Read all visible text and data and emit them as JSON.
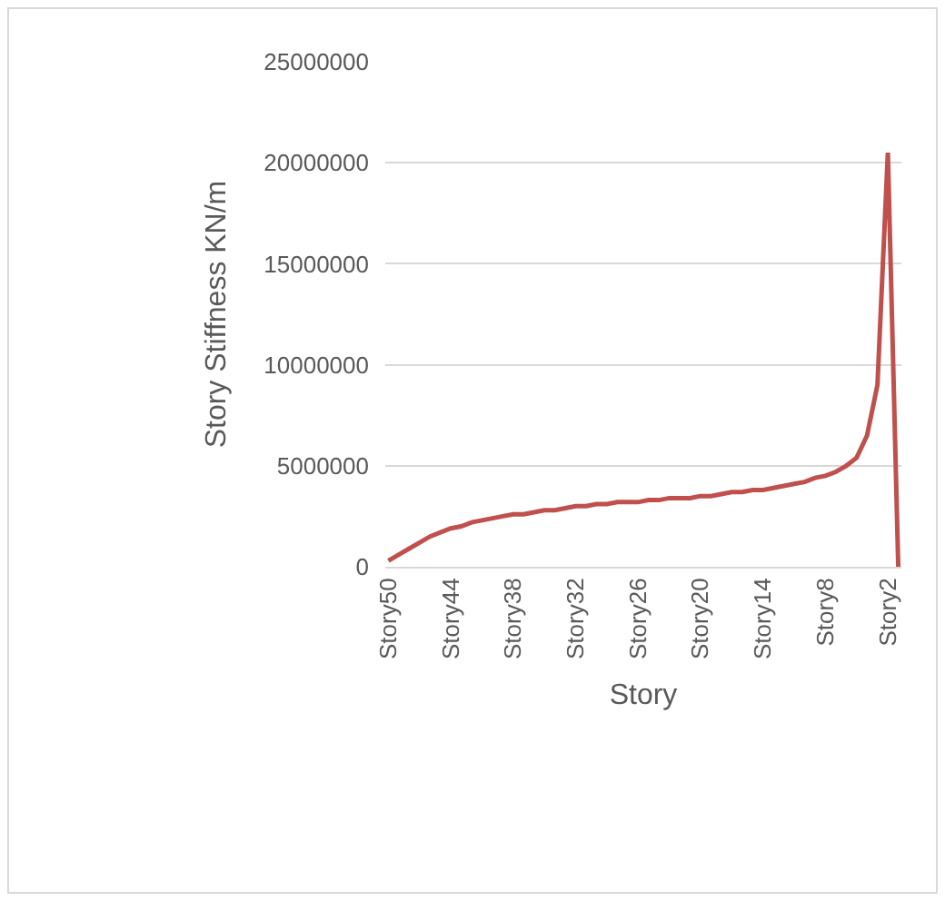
{
  "chart_data": {
    "type": "line",
    "xlabel": "Story",
    "ylabel": "Story Stiffness KN/m",
    "categories": [
      "Story50",
      null,
      null,
      null,
      null,
      null,
      "Story44",
      null,
      null,
      null,
      null,
      null,
      "Story38",
      null,
      null,
      null,
      null,
      null,
      "Story32",
      null,
      null,
      null,
      null,
      null,
      "Story26",
      null,
      null,
      null,
      null,
      null,
      "Story20",
      null,
      null,
      null,
      null,
      null,
      "Story14",
      null,
      null,
      null,
      null,
      null,
      "Story8",
      null,
      null,
      null,
      null,
      null,
      "Story2",
      null
    ],
    "series": [
      {
        "color": "#c0504d",
        "values": [
          300000,
          600000,
          900000,
          1200000,
          1500000,
          1700000,
          1900000,
          2000000,
          2200000,
          2300000,
          2400000,
          2500000,
          2600000,
          2600000,
          2700000,
          2800000,
          2800000,
          2900000,
          3000000,
          3000000,
          3100000,
          3100000,
          3200000,
          3200000,
          3200000,
          3300000,
          3300000,
          3400000,
          3400000,
          3400000,
          3500000,
          3500000,
          3600000,
          3700000,
          3700000,
          3800000,
          3800000,
          3900000,
          4000000,
          4100000,
          4200000,
          4400000,
          4500000,
          4700000,
          5000000,
          5400000,
          6500000,
          9000000,
          20500000,
          0
        ]
      }
    ],
    "ylim": [
      0,
      25000000
    ],
    "yticks": [
      0,
      5000000,
      10000000,
      15000000,
      20000000,
      25000000
    ],
    "grid": "y",
    "marker": "none",
    "line_style": "solid"
  }
}
